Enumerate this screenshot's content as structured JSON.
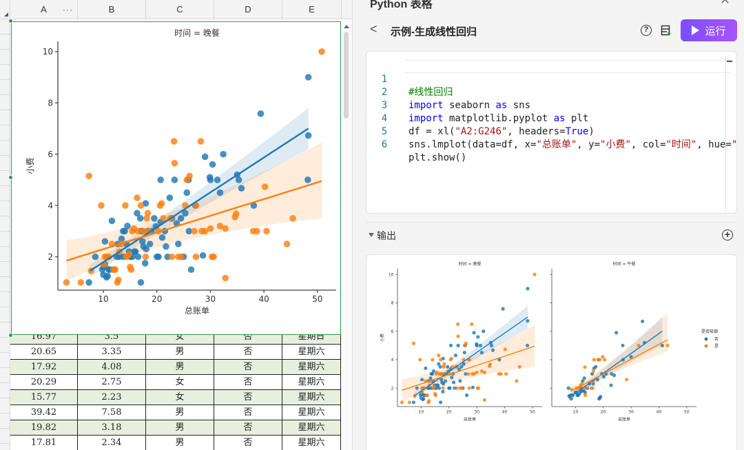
{
  "sheet": {
    "columns": [
      "A",
      "B",
      "C",
      "D",
      "E"
    ],
    "column_more_icon": "more-horizontal-icon",
    "visible_rows": [
      {
        "a": "16.97",
        "b": "3.5",
        "c": "女",
        "d": "否",
        "e": "星期日"
      },
      {
        "a": "20.65",
        "b": "3.35",
        "c": "男",
        "d": "否",
        "e": "星期六"
      },
      {
        "a": "17.92",
        "b": "4.08",
        "c": "男",
        "d": "否",
        "e": "星期六"
      },
      {
        "a": "20.29",
        "b": "2.75",
        "c": "女",
        "d": "否",
        "e": "星期六"
      },
      {
        "a": "15.77",
        "b": "2.23",
        "c": "女",
        "d": "否",
        "e": "星期六"
      },
      {
        "a": "39.42",
        "b": "7.58",
        "c": "男",
        "d": "否",
        "e": "星期六"
      },
      {
        "a": "19.82",
        "b": "3.18",
        "c": "男",
        "d": "否",
        "e": "星期六"
      },
      {
        "a": "17.81",
        "b": "2.34",
        "c": "男",
        "d": "否",
        "e": "星期六"
      }
    ],
    "row_fill_alt": "#e9efdf",
    "selection_color": "#2a9d4a"
  },
  "panel": {
    "title": "Python 表格",
    "close_icon": "close-icon",
    "back_icon": "chevron-left-icon",
    "script_title": "示例-生成线性回归",
    "help_icon": "help-circle-icon",
    "list_icon": "script-list-icon",
    "run_label": "运行",
    "run_icon": "play-icon",
    "run_gradient": [
      "#7b4dff",
      "#a855f7"
    ],
    "code_lines": [
      {
        "n": "1",
        "text": "#线性回归"
      },
      {
        "n": "2",
        "text": "import seaborn as sns"
      },
      {
        "n": "3",
        "text": "import matplotlib.pyplot as plt"
      },
      {
        "n": "4",
        "text": "df = xl(\"A2:G246\", headers=True)"
      },
      {
        "n": "5",
        "text": "sns.lmplot(data=df, x=\"总账单\", y=\"小费\", col=\"时间\", hue=\""
      },
      {
        "n": "6",
        "text": "plt.show()"
      }
    ],
    "output_label": "输出",
    "add_icon": "plus-circle-icon"
  },
  "chart_data": [
    {
      "type": "scatter",
      "title": "时间 = 晚餐",
      "xlabel": "总账单",
      "ylabel": "小费",
      "xticks": [
        10,
        20,
        30,
        40,
        50
      ],
      "yticks": [
        2,
        4,
        6,
        8,
        10
      ],
      "xlim": [
        1.5,
        53.5
      ],
      "ylim": [
        0.7,
        10.4
      ],
      "hue": "是否吸烟",
      "series": [
        {
          "name": "否",
          "color": "#1f77b4",
          "regression": {
            "x": [
              7.5,
              48.3
            ],
            "y": [
              1.45,
              7.0
            ],
            "ci_upper_end": 7.8,
            "ci_lower_end": 6.2
          },
          "points": [
            [
              7.3,
              1.0
            ],
            [
              8.5,
              2.0
            ],
            [
              9.8,
              1.5
            ],
            [
              10.0,
              1.3
            ],
            [
              10.1,
              1.6
            ],
            [
              10.3,
              1.7
            ],
            [
              10.3,
              2.6
            ],
            [
              10.6,
              1.2
            ],
            [
              10.8,
              1.25
            ],
            [
              11.0,
              1.5
            ],
            [
              11.2,
              1.5
            ],
            [
              11.6,
              3.4
            ],
            [
              12.0,
              1.5
            ],
            [
              12.5,
              2.0
            ],
            [
              12.7,
              2.5
            ],
            [
              13.0,
              2.0
            ],
            [
              13.4,
              2.7
            ],
            [
              13.7,
              3.0
            ],
            [
              13.8,
              2.0
            ],
            [
              14.0,
              3.0
            ],
            [
              14.3,
              2.5
            ],
            [
              14.5,
              3.2
            ],
            [
              14.8,
              2.2
            ],
            [
              15.0,
              2.0
            ],
            [
              15.4,
              2.0
            ],
            [
              15.8,
              2.2
            ],
            [
              16.0,
              2.2
            ],
            [
              16.3,
              3.7
            ],
            [
              16.5,
              2.0
            ],
            [
              16.9,
              3.5
            ],
            [
              17.0,
              1.0
            ],
            [
              17.1,
              3.0
            ],
            [
              17.3,
              2.6
            ],
            [
              17.5,
              2.4
            ],
            [
              17.8,
              1.75
            ],
            [
              17.9,
              4.08
            ],
            [
              18.0,
              2.3
            ],
            [
              18.3,
              3.0
            ],
            [
              18.7,
              2.5
            ],
            [
              19.0,
              3.0
            ],
            [
              19.5,
              3.5
            ],
            [
              19.8,
              3.18
            ],
            [
              20.0,
              2.0
            ],
            [
              20.3,
              2.0
            ],
            [
              20.7,
              3.35
            ],
            [
              20.7,
              5.0
            ],
            [
              21.0,
              2.75
            ],
            [
              21.5,
              3.0
            ],
            [
              21.7,
              2.4
            ],
            [
              22.0,
              2.0
            ],
            [
              22.4,
              4.3
            ],
            [
              22.8,
              3.5
            ],
            [
              23.3,
              5.0
            ],
            [
              23.7,
              3.3
            ],
            [
              24.0,
              2.5
            ],
            [
              24.5,
              3.5
            ],
            [
              25.0,
              2.0
            ],
            [
              25.3,
              3.7
            ],
            [
              25.6,
              4.5
            ],
            [
              25.9,
              5.0
            ],
            [
              26.0,
              3.0
            ],
            [
              26.4,
              1.5
            ],
            [
              27.2,
              4.0
            ],
            [
              28.6,
              2.05
            ],
            [
              29.0,
              5.9
            ],
            [
              29.9,
              5.1
            ],
            [
              30.0,
              5.0
            ],
            [
              30.4,
              5.6
            ],
            [
              31.3,
              5.0
            ],
            [
              31.8,
              4.5
            ],
            [
              32.4,
              6.0
            ],
            [
              35.0,
              5.2
            ],
            [
              35.3,
              5.0
            ],
            [
              35.8,
              4.67
            ],
            [
              38.1,
              4.0
            ],
            [
              39.4,
              7.58
            ],
            [
              48.2,
              5.0
            ],
            [
              48.3,
              6.73
            ],
            [
              48.3,
              9.0
            ]
          ]
        },
        {
          "name": "是",
          "color": "#ff7f0e",
          "regression": {
            "x": [
              3.1,
              50.8
            ],
            "y": [
              1.85,
              4.95
            ],
            "ci_upper_end": 6.45,
            "ci_lower_end": 3.5
          },
          "points": [
            [
              3.1,
              1.0
            ],
            [
              5.8,
              1.0
            ],
            [
              7.3,
              5.15
            ],
            [
              7.7,
              1.45
            ],
            [
              9.6,
              4.0
            ],
            [
              10.1,
              1.7
            ],
            [
              10.3,
              2.0
            ],
            [
              10.6,
              2.0
            ],
            [
              11.0,
              2.0
            ],
            [
              11.6,
              2.5
            ],
            [
              11.9,
              1.5
            ],
            [
              12.2,
              1.5
            ],
            [
              12.6,
              1.0
            ],
            [
              12.8,
              1.1
            ],
            [
              13.0,
              2.2
            ],
            [
              13.4,
              2.5
            ],
            [
              14.1,
              4.0
            ],
            [
              14.3,
              2.0
            ],
            [
              14.8,
              2.1
            ],
            [
              15.0,
              1.6
            ],
            [
              15.2,
              1.5
            ],
            [
              15.4,
              3.0
            ],
            [
              15.7,
              3.1
            ],
            [
              16.3,
              4.3
            ],
            [
              16.5,
              3.0
            ],
            [
              17.0,
              4.0
            ],
            [
              17.5,
              3.0
            ],
            [
              17.9,
              2.0
            ],
            [
              18.1,
              3.5
            ],
            [
              18.3,
              3.7
            ],
            [
              18.5,
              3.0
            ],
            [
              20.3,
              3.0
            ],
            [
              20.6,
              4.0
            ],
            [
              20.9,
              4.08
            ],
            [
              21.2,
              3.5
            ],
            [
              22.5,
              3.5
            ],
            [
              22.8,
              2.0
            ],
            [
              23.2,
              6.5
            ],
            [
              23.3,
              5.65
            ],
            [
              24.0,
              2.0
            ],
            [
              24.5,
              2.0
            ],
            [
              25.3,
              4.0
            ],
            [
              25.6,
              5.0
            ],
            [
              26.1,
              5.15
            ],
            [
              27.0,
              3.0
            ],
            [
              27.3,
              4.0
            ],
            [
              27.3,
              2.0
            ],
            [
              28.2,
              6.5
            ],
            [
              28.4,
              3.0
            ],
            [
              29.0,
              3.0
            ],
            [
              30.0,
              3.1
            ],
            [
              30.3,
              2.0
            ],
            [
              30.6,
              2.0
            ],
            [
              31.8,
              3.2
            ],
            [
              32.8,
              3.1
            ],
            [
              32.8,
              1.17
            ],
            [
              34.6,
              3.55
            ],
            [
              34.8,
              3.68
            ],
            [
              38.0,
              3.0
            ],
            [
              38.7,
              3.0
            ],
            [
              40.2,
              4.73
            ],
            [
              40.5,
              3.0
            ],
            [
              44.3,
              2.5
            ],
            [
              45.4,
              3.5
            ],
            [
              50.8,
              10.0
            ]
          ]
        }
      ]
    },
    {
      "type": "scatter",
      "title": "时间 = 午餐",
      "xlabel": "总账单",
      "ylabel": "",
      "xticks": [
        10,
        20,
        30,
        40,
        50
      ],
      "yticks": [
        2,
        4,
        6,
        8,
        10
      ],
      "xlim": [
        1.5,
        53.5
      ],
      "ylim": [
        0.7,
        10.4
      ],
      "legend": {
        "title": "是否吸烟",
        "entries": [
          "否",
          "是"
        ],
        "position": "right"
      },
      "series": [
        {
          "name": "否",
          "color": "#1f77b4",
          "regression": {
            "x": [
              7.5,
              41.2
            ],
            "y": [
              1.3,
              6.0
            ],
            "ci_upper_end": 7.0,
            "ci_lower_end": 5.0
          },
          "points": [
            [
              7.5,
              2.0
            ],
            [
              7.7,
              1.45
            ],
            [
              8.3,
              1.5
            ],
            [
              8.5,
              1.25
            ],
            [
              9.0,
              1.5
            ],
            [
              10.0,
              1.7
            ],
            [
              10.3,
              1.7
            ],
            [
              10.7,
              1.5
            ],
            [
              11.0,
              1.5
            ],
            [
              11.4,
              1.6
            ],
            [
              11.9,
              1.75
            ],
            [
              12.0,
              2.0
            ],
            [
              12.4,
              1.8
            ],
            [
              12.6,
              2.5
            ],
            [
              13.0,
              1.8
            ],
            [
              13.2,
              2.7
            ],
            [
              13.5,
              1.7
            ],
            [
              14.0,
              2.0
            ],
            [
              14.3,
              2.0
            ],
            [
              15.0,
              2.3
            ],
            [
              16.0,
              3.0
            ],
            [
              16.4,
              2.3
            ],
            [
              16.7,
              3.4
            ],
            [
              17.3,
              3.5
            ],
            [
              17.9,
              2.6
            ],
            [
              18.2,
              4.0
            ],
            [
              18.5,
              1.25
            ],
            [
              18.7,
              1.3
            ],
            [
              19.0,
              1.4
            ],
            [
              19.5,
              3.0
            ],
            [
              20.2,
              2.8
            ],
            [
              21.0,
              3.0
            ],
            [
              22.8,
              2.2
            ],
            [
              23.0,
              3.0
            ],
            [
              23.9,
              2.9
            ],
            [
              24.7,
              5.9
            ],
            [
              27.0,
              5.0
            ],
            [
              27.1,
              4.0
            ],
            [
              30.0,
              4.2
            ],
            [
              34.1,
              6.7
            ],
            [
              34.8,
              5.2
            ],
            [
              41.2,
              5.0
            ]
          ]
        },
        {
          "name": "是",
          "color": "#ff7f0e",
          "regression": {
            "x": [
              8.5,
              43.1
            ],
            "y": [
              1.8,
              5.4
            ],
            "ci_upper_end": 7.3,
            "ci_lower_end": 4.6
          },
          "points": [
            [
              8.6,
              1.9
            ],
            [
              10.3,
              2.0
            ],
            [
              11.0,
              2.0
            ],
            [
              11.6,
              2.1
            ],
            [
              12.0,
              2.2
            ],
            [
              12.3,
              2.3
            ],
            [
              13.3,
              2.0
            ],
            [
              13.4,
              3.48
            ],
            [
              13.5,
              1.5
            ],
            [
              14.0,
              2.0
            ],
            [
              15.7,
              2.0
            ],
            [
              16.2,
              2.0
            ],
            [
              16.4,
              2.5
            ],
            [
              16.5,
              3.2
            ],
            [
              16.7,
              4.0
            ],
            [
              18.3,
              4.0
            ],
            [
              18.7,
              4.0
            ],
            [
              19.8,
              4.2
            ],
            [
              20.5,
              4.0
            ],
            [
              28.4,
              2.6
            ],
            [
              32.7,
              5.0
            ],
            [
              43.1,
              5.0
            ]
          ]
        }
      ]
    }
  ]
}
